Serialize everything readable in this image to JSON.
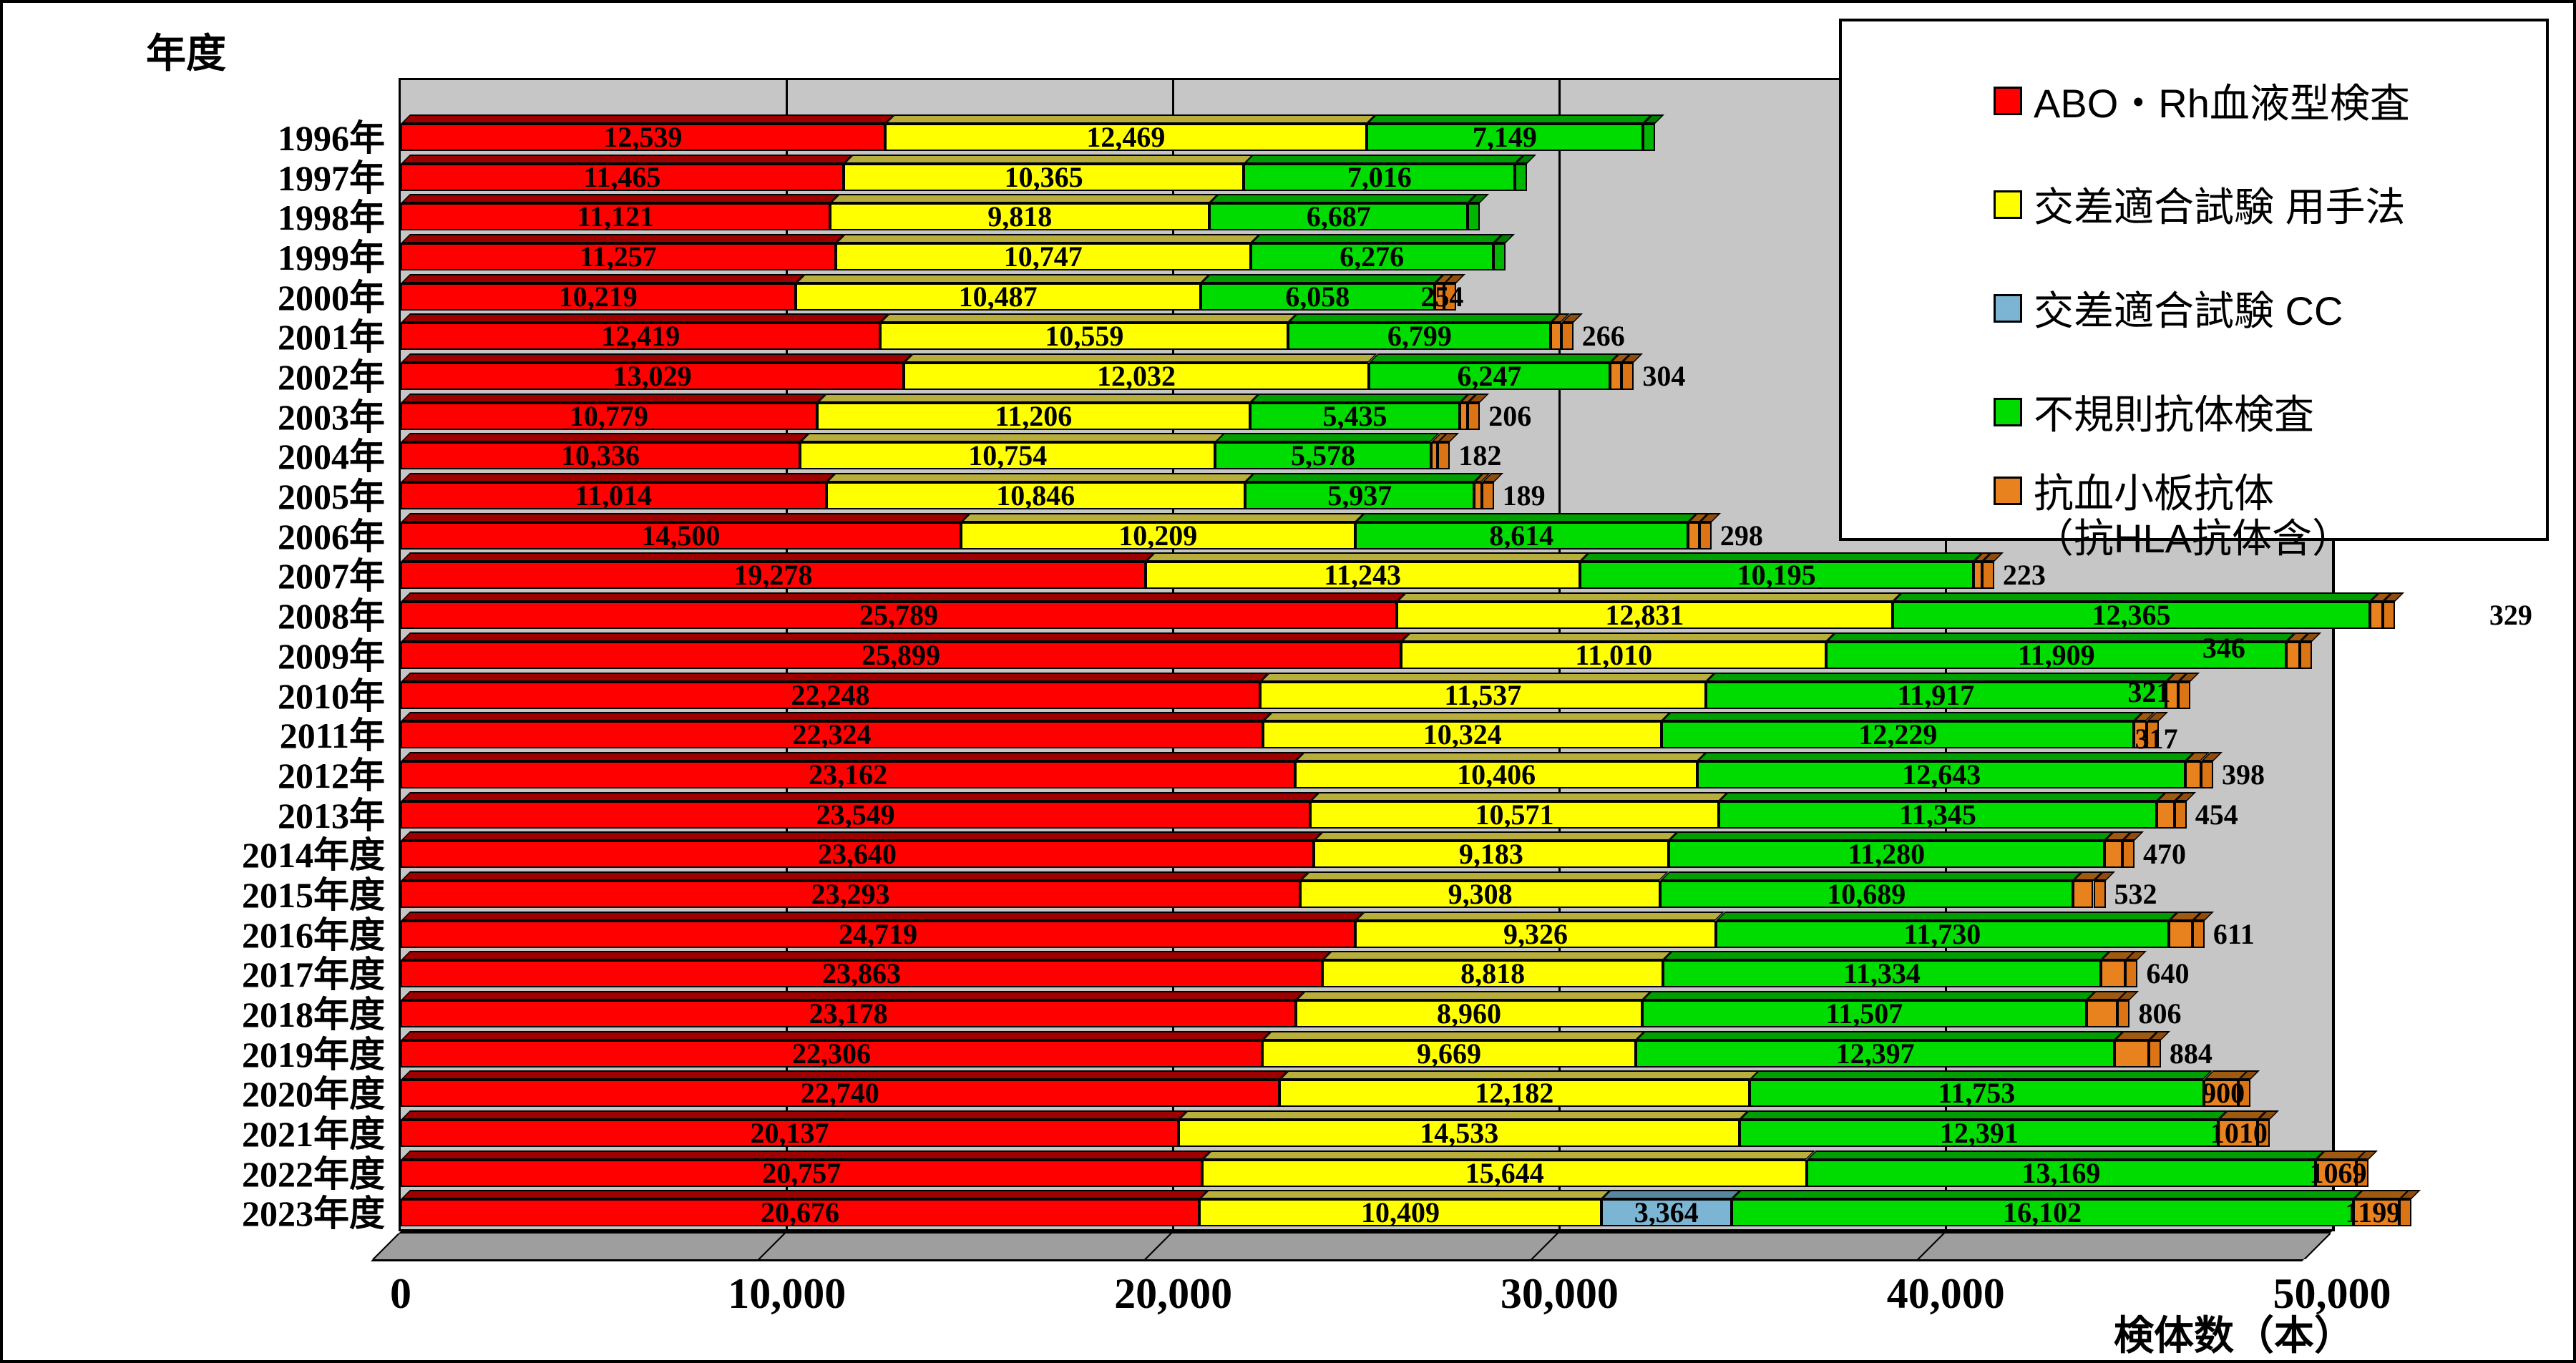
{
  "y_axis_title": "年度",
  "x_axis": {
    "unit_label": "検体数（本）",
    "tick_labels": [
      "0",
      "10,000",
      "20,000",
      "30,000",
      "40,000",
      "50,000"
    ],
    "tick_values": [
      0,
      10000,
      20000,
      30000,
      40000,
      50000
    ]
  },
  "chart_data": {
    "type": "bar",
    "orientation": "horizontal",
    "stacked": true,
    "xlabel": "検体数（本）",
    "ylabel": "年度",
    "xlim": [
      0,
      50000
    ],
    "grid": true,
    "legend_position": "top-right",
    "plot_background": "#C6C6C6",
    "categories": [
      "1996年",
      "1997年",
      "1998年",
      "1999年",
      "2000年",
      "2001年",
      "2002年",
      "2003年",
      "2004年",
      "2005年",
      "2006年",
      "2007年",
      "2008年",
      "2009年",
      "2010年",
      "2011年",
      "2012年",
      "2013年",
      "2014年度",
      "2015年度",
      "2016年度",
      "2017年度",
      "2018年度",
      "2019年度",
      "2020年度",
      "2021年度",
      "2022年度",
      "2023年度"
    ],
    "series": [
      {
        "key": "abo",
        "name": "ABO・Rh血液型検査",
        "color": "#FF0000",
        "values": [
          12539,
          11465,
          11121,
          11257,
          10219,
          12419,
          13029,
          10779,
          10336,
          11014,
          14500,
          19278,
          25789,
          25899,
          22248,
          22324,
          23162,
          23549,
          23640,
          23293,
          24719,
          23863,
          23178,
          22306,
          22740,
          20137,
          20757,
          20676
        ]
      },
      {
        "key": "manual",
        "name": "交差適合試験 用手法",
        "color": "#FFFF00",
        "values": [
          12469,
          10365,
          9818,
          10747,
          10487,
          10559,
          12032,
          11206,
          10754,
          10846,
          10209,
          11243,
          12831,
          11010,
          11537,
          10324,
          10406,
          10571,
          9183,
          9308,
          9326,
          8818,
          8960,
          9669,
          12182,
          14533,
          15644,
          10409
        ]
      },
      {
        "key": "cc",
        "name": "交差適合試験 CC",
        "color": "#7CB5D3",
        "values": [
          0,
          0,
          0,
          0,
          0,
          0,
          0,
          0,
          0,
          0,
          0,
          0,
          0,
          0,
          0,
          0,
          0,
          0,
          0,
          0,
          0,
          0,
          0,
          0,
          0,
          0,
          0,
          3364
        ]
      },
      {
        "key": "irregular",
        "name": "不規則抗体検査",
        "color": "#00DC00",
        "values": [
          7149,
          7016,
          6687,
          6276,
          6058,
          6799,
          6247,
          5435,
          5578,
          5937,
          8614,
          10195,
          12365,
          11909,
          11917,
          12229,
          12643,
          11345,
          11280,
          10689,
          11730,
          11334,
          11507,
          12397,
          11753,
          12391,
          13169,
          16102
        ]
      },
      {
        "key": "platelet",
        "name": "抗血小板抗体",
        "name_line2": "（抗HLA抗体含）",
        "color": "#E8821E",
        "values": [
          0,
          0,
          0,
          0,
          254,
          266,
          304,
          206,
          182,
          189,
          298,
          223,
          329,
          346,
          321,
          317,
          398,
          454,
          470,
          532,
          611,
          640,
          806,
          884,
          900,
          1010,
          1069,
          1199
        ],
        "value_labels": [
          "",
          "",
          "",
          "",
          "254",
          "266",
          "304",
          "206",
          "182",
          "189",
          "298",
          "223",
          "329",
          "346",
          "321",
          "317",
          "398",
          "454",
          "470",
          "532",
          "611",
          "640",
          "806",
          "884",
          "900",
          "1010",
          "1069",
          "1199"
        ]
      }
    ]
  }
}
